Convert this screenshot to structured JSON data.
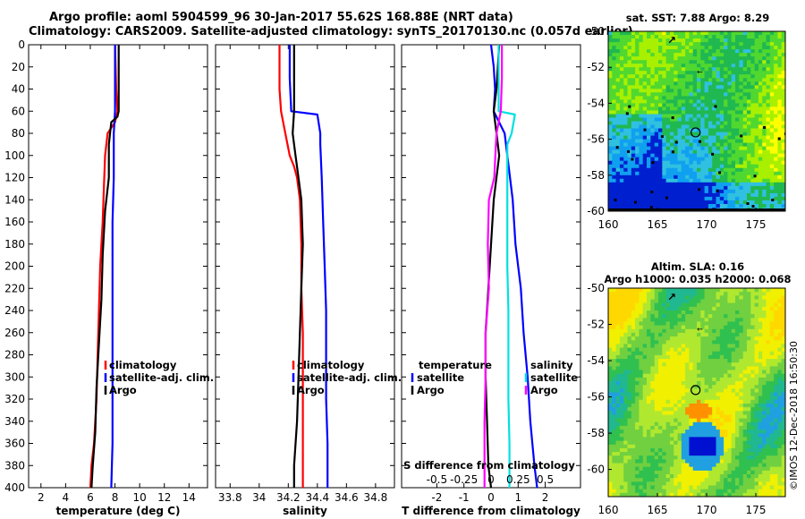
{
  "header": {
    "line1": "Argo profile: aoml 5904599_96 30-Jan-2017 55.62S 168.88E (NRT data)",
    "line2": "Climatology: CARS2009. Satellite-adjusted climatology: synTS_20170130.nc (0.057d earlier)"
  },
  "credit": "©IMOS 12-Dec-2018 16:50:30",
  "chart_data": [
    {
      "type": "line",
      "id": "temperature",
      "xlabel": "temperature (deg C)",
      "ylabel": "",
      "xlim": [
        1,
        15.5
      ],
      "ylim": [
        400,
        0
      ],
      "xticks": [
        2,
        4,
        6,
        8,
        10,
        12,
        14
      ],
      "yticks": [
        0,
        20,
        40,
        60,
        80,
        100,
        120,
        140,
        160,
        180,
        200,
        220,
        240,
        260,
        280,
        300,
        320,
        340,
        360,
        380,
        400
      ],
      "legend": [
        "climatology",
        "satellite-adj. clim.",
        "Argo"
      ],
      "series": [
        {
          "name": "climatology",
          "color": "#ff0000",
          "x": [
            8.0,
            8.1,
            8.2,
            8.0,
            7.4,
            7.2,
            7.1,
            7.0,
            6.8,
            6.7,
            6.6,
            6.5,
            6.3,
            6.1,
            6.0
          ],
          "y": [
            0,
            40,
            60,
            70,
            80,
            100,
            130,
            160,
            200,
            240,
            280,
            320,
            360,
            380,
            400
          ]
        },
        {
          "name": "satellite-adj. clim.",
          "color": "#0000ff",
          "x": [
            8.0,
            8.0,
            8.0,
            7.9,
            7.9,
            7.8,
            7.8,
            7.8,
            7.8,
            7.8,
            7.7
          ],
          "y": [
            0,
            40,
            60,
            80,
            120,
            160,
            200,
            240,
            280,
            360,
            400
          ]
        },
        {
          "name": "Argo",
          "color": "#000000",
          "x": [
            8.3,
            8.3,
            8.3,
            8.2,
            7.7,
            7.5,
            7.5,
            7.2,
            7.0,
            6.9,
            6.7,
            6.5,
            6.4,
            6.2,
            6.1
          ],
          "y": [
            0,
            30,
            60,
            65,
            70,
            90,
            120,
            150,
            190,
            230,
            270,
            310,
            350,
            380,
            400
          ]
        }
      ]
    },
    {
      "type": "line",
      "id": "salinity",
      "xlabel": "salinity",
      "ylabel": "",
      "xlim": [
        33.7,
        34.93
      ],
      "ylim": [
        400,
        0
      ],
      "xticks": [
        33.8,
        34,
        34.2,
        34.4,
        34.6,
        34.8
      ],
      "legend": [
        "climatology",
        "satellite-adj. clim.",
        "Argo"
      ],
      "series": [
        {
          "name": "climatology",
          "color": "#ff0000",
          "x": [
            34.14,
            34.14,
            34.15,
            34.18,
            34.21,
            34.24,
            34.26,
            34.28,
            34.29,
            34.29,
            34.3,
            34.3,
            34.3,
            34.3
          ],
          "y": [
            0,
            40,
            60,
            80,
            100,
            110,
            120,
            140,
            180,
            220,
            260,
            300,
            360,
            400
          ]
        },
        {
          "name": "satellite-adj. clim.",
          "color": "#0000ff",
          "x": [
            34.21,
            34.21,
            34.22,
            34.4,
            34.42,
            34.42,
            34.43,
            34.44,
            34.45,
            34.46,
            34.46,
            34.46,
            34.47,
            34.47
          ],
          "y": [
            0,
            30,
            60,
            63,
            80,
            90,
            120,
            160,
            200,
            240,
            280,
            320,
            360,
            400
          ]
        },
        {
          "name": "Argo",
          "color": "#000000",
          "x": [
            34.24,
            34.24,
            34.24,
            34.23,
            34.25,
            34.27,
            34.29,
            34.3,
            34.29,
            34.28,
            34.27,
            34.26,
            34.24,
            34.24
          ],
          "y": [
            0,
            30,
            60,
            80,
            100,
            120,
            140,
            180,
            220,
            260,
            300,
            340,
            380,
            400
          ]
        }
      ]
    },
    {
      "type": "line",
      "id": "difference",
      "xlabel": "T difference from climatology",
      "top_axis_label": "S difference from climatology",
      "xlim": [
        -3.3,
        3.3
      ],
      "ylim": [
        400,
        0
      ],
      "xticks": [
        -2,
        -1,
        0,
        1,
        2
      ],
      "xtick_labels": [
        "-2",
        "-1",
        "0",
        "1",
        "2"
      ],
      "sticks": [
        -0.5,
        -0.25,
        0,
        0.25,
        0.5
      ],
      "stick_labels": [
        "-0.5",
        "-0.25",
        "0",
        "0.25",
        "0.5"
      ],
      "legend": {
        "temperature_title": "temperature",
        "salinity_title": "salinity",
        "labels": [
          "satellite",
          "Argo"
        ]
      },
      "series": [
        {
          "name": "temperature satellite",
          "quantity": "temperature",
          "color": "#0000ff",
          "x": [
            0.0,
            0.1,
            0.15,
            0.1,
            0.5,
            0.6,
            0.8,
            0.9,
            1.1,
            1.2,
            1.35,
            1.45,
            1.6,
            1.7
          ],
          "y": [
            0,
            20,
            40,
            60,
            80,
            100,
            140,
            180,
            220,
            260,
            300,
            340,
            380,
            400
          ]
        },
        {
          "name": "temperature Argo",
          "quantity": "temperature",
          "color": "#000000",
          "x": [
            0.3,
            0.25,
            0.2,
            0.1,
            0.2,
            0.3,
            0.1,
            0.0,
            -0.1,
            -0.2,
            -0.2,
            -0.15,
            -0.1,
            0.0
          ],
          "y": [
            0,
            20,
            40,
            60,
            80,
            100,
            140,
            180,
            220,
            260,
            300,
            340,
            380,
            400
          ]
        },
        {
          "name": "salinity satellite",
          "quantity": "salinity",
          "color": "#00e0e0",
          "x": [
            0.07,
            0.07,
            0.07,
            0.22,
            0.19,
            0.15,
            0.15,
            0.15,
            0.15,
            0.16,
            0.16,
            0.16,
            0.17,
            0.17
          ],
          "y": [
            0,
            30,
            60,
            63,
            80,
            90,
            120,
            160,
            200,
            240,
            280,
            320,
            360,
            400
          ]
        },
        {
          "name": "salinity Argo",
          "quantity": "salinity",
          "color": "#ff00ff",
          "x": [
            0.1,
            0.1,
            0.09,
            0.05,
            0.04,
            0.03,
            -0.02,
            -0.03,
            -0.02,
            -0.05,
            -0.05,
            -0.06,
            -0.06,
            -0.06
          ],
          "y": [
            0,
            30,
            60,
            80,
            100,
            120,
            140,
            180,
            220,
            260,
            300,
            340,
            380,
            400
          ]
        }
      ]
    },
    {
      "type": "heatmap",
      "id": "sst_map",
      "title": "sat. SST: 7.88 Argo: 8.29",
      "xlim": [
        160,
        178
      ],
      "ylim": [
        -60,
        -50
      ],
      "xticks": [
        160,
        165,
        170,
        175
      ],
      "yticks": [
        -50,
        -52,
        -54,
        -56,
        -58,
        -60
      ],
      "float_position": [
        168.88,
        -55.62
      ]
    },
    {
      "type": "heatmap",
      "id": "sla_map",
      "title_line1": "Altim. SLA: 0.16",
      "title_line2": "Argo h1000: 0.035 h2000: 0.068",
      "xlim": [
        160,
        178
      ],
      "ylim": [
        -61.5,
        -50
      ],
      "xticks": [
        160,
        165,
        170,
        175
      ],
      "yticks": [
        -50,
        -52,
        -54,
        -56,
        -58,
        -60
      ],
      "float_position": [
        168.88,
        -55.62
      ]
    }
  ]
}
